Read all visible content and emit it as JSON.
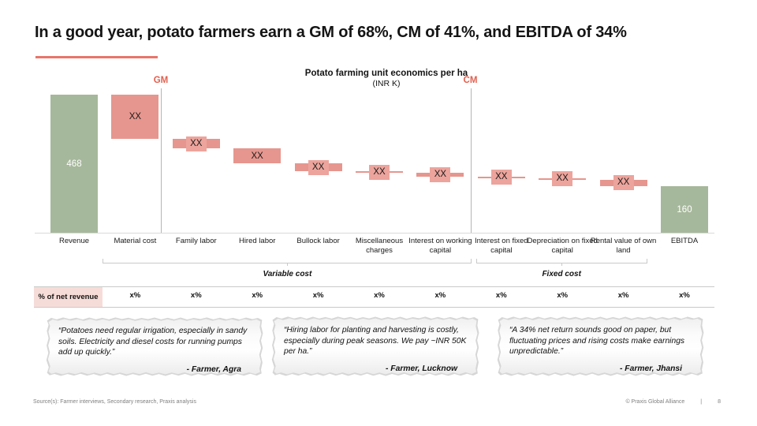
{
  "slide": {
    "title": "In a good year, potato farmers earn a GM of 68%, CM of 41%, and EBITDA of 34%",
    "accent_color": "#e2604f",
    "underline_color": "#e8756a"
  },
  "chart_data": {
    "type": "bar",
    "subtype": "waterfall",
    "title": "Potato farming unit economics per ha",
    "subtitle": "(INR K)",
    "ylim": [
      0,
      468
    ],
    "grid": false,
    "bars": [
      {
        "category": "Revenue",
        "type": "total",
        "start": 0,
        "end": 468,
        "label": "468",
        "pct_of_net_revenue": null
      },
      {
        "category": "Material cost",
        "type": "cost",
        "start": 468,
        "end": 318,
        "label": "XX",
        "pct_of_net_revenue": "x%"
      },
      {
        "category": "Family labor",
        "type": "cost",
        "start": 318,
        "end": 286,
        "label": "XX",
        "pct_of_net_revenue": "x%"
      },
      {
        "category": "Hired labor",
        "type": "cost",
        "start": 286,
        "end": 235,
        "label": "XX",
        "pct_of_net_revenue": "x%"
      },
      {
        "category": "Bullock labor",
        "type": "cost",
        "start": 235,
        "end": 209,
        "label": "XX",
        "pct_of_net_revenue": "x%"
      },
      {
        "category": "Miscellaneous charges",
        "type": "cost",
        "start": 209,
        "end": 203,
        "label": "XX",
        "pct_of_net_revenue": "x%"
      },
      {
        "category": "Interest on working capital",
        "type": "cost",
        "start": 203,
        "end": 192,
        "label": "XX",
        "pct_of_net_revenue": "x%"
      },
      {
        "category": "Interest on fixed capital",
        "type": "cost",
        "start": 192,
        "end": 186,
        "label": "XX",
        "pct_of_net_revenue": "x%"
      },
      {
        "category": "Depreciation on fixed capital",
        "type": "cost",
        "start": 186,
        "end": 180,
        "label": "XX",
        "pct_of_net_revenue": "x%"
      },
      {
        "category": "Rental value of own land",
        "type": "cost",
        "start": 180,
        "end": 160,
        "label": "XX",
        "pct_of_net_revenue": "x%"
      },
      {
        "category": "EBITDA",
        "type": "total",
        "start": 0,
        "end": 160,
        "label": "160",
        "pct_of_net_revenue": "x%"
      }
    ],
    "markers": [
      {
        "label": "GM",
        "after_category": "Material cost"
      },
      {
        "label": "CM",
        "after_category": "Interest on working capital"
      }
    ],
    "groups": [
      {
        "label": "Variable cost",
        "from_index": 1,
        "to_index": 6
      },
      {
        "label": "Fixed cost",
        "from_index": 7,
        "to_index": 9
      }
    ],
    "pct_row_label": "% of net revenue",
    "colors": {
      "total": "#a6b89b",
      "cost": "#e6968e",
      "cost_label_bg": "#eca49c",
      "pct_cell_bg": "#f6dcd8",
      "total_value_text": "#ffffff"
    }
  },
  "quotes": [
    {
      "text": "“Potatoes need regular irrigation, especially in sandy soils. Electricity and diesel costs for running pumps add up quickly.”",
      "attribution": "- Farmer, Agra"
    },
    {
      "text": "“Hiring labor for planting and harvesting is costly, especially during peak seasons. We pay ~INR 50K per ha.”",
      "attribution": "- Farmer, Lucknow"
    },
    {
      "text": "“A 34% net return sounds good on paper, but fluctuating prices and rising costs make earnings unpredictable.”",
      "attribution": "- Farmer, Jhansi"
    }
  ],
  "footer": {
    "source": "Source(s): Farmer interviews, Secondary research, Praxis analysis",
    "copyright": "© Praxis Global Alliance",
    "separator": "|",
    "page": "8"
  }
}
